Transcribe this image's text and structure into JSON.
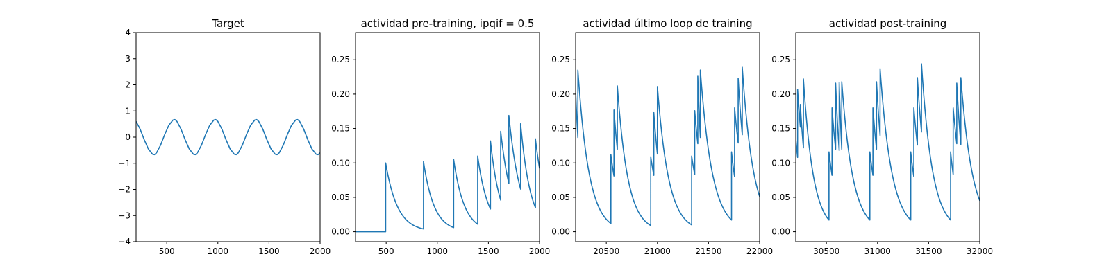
{
  "chart_data": [
    {
      "type": "line",
      "title": "Target",
      "xlim": [
        200,
        2000
      ],
      "ylim": [
        -4,
        4
      ],
      "xticks": [
        500,
        1000,
        1500,
        2000
      ],
      "yticks": [
        -4,
        -3,
        -2,
        -1,
        0,
        1,
        2,
        3,
        4
      ],
      "x_tick_labels": [
        "500",
        "1000",
        "1500",
        "2000"
      ],
      "y_tick_labels": [
        "−4",
        "−3",
        "−2",
        "−1",
        "0",
        "1",
        "2",
        "3",
        "4"
      ],
      "series": [
        {
          "color": "#1f77b4",
          "x": [
            200,
            240,
            280,
            320,
            360,
            380,
            400,
            440,
            480,
            520,
            560,
            580,
            600,
            640,
            680,
            720,
            760,
            780,
            800,
            840,
            880,
            920,
            960,
            980,
            1000,
            1040,
            1080,
            1120,
            1160,
            1180,
            1200,
            1240,
            1280,
            1320,
            1360,
            1380,
            1400,
            1440,
            1480,
            1520,
            1560,
            1580,
            1600,
            1640,
            1680,
            1720,
            1760,
            1780,
            1800,
            1840,
            1880,
            1920,
            1960,
            1980,
            2000
          ],
          "y": [
            0.6,
            0.3,
            -0.1,
            -0.45,
            -0.65,
            -0.67,
            -0.6,
            -0.3,
            0.1,
            0.45,
            0.65,
            0.67,
            0.6,
            0.3,
            -0.1,
            -0.45,
            -0.65,
            -0.67,
            -0.6,
            -0.3,
            0.1,
            0.45,
            0.65,
            0.67,
            0.6,
            0.3,
            -0.1,
            -0.45,
            -0.65,
            -0.67,
            -0.6,
            -0.3,
            0.1,
            0.45,
            0.65,
            0.67,
            0.6,
            0.3,
            -0.1,
            -0.45,
            -0.65,
            -0.67,
            -0.6,
            -0.3,
            0.1,
            0.45,
            0.65,
            0.67,
            0.6,
            0.3,
            -0.1,
            -0.45,
            -0.65,
            -0.67,
            -0.6
          ]
        }
      ]
    },
    {
      "type": "line",
      "title": "actividad pre-training, ipqif = 0.5",
      "xlim": [
        200,
        2000
      ],
      "ylim": [
        -0.0145,
        0.2895
      ],
      "xticks": [
        500,
        1000,
        1500,
        2000
      ],
      "yticks": [
        0.0,
        0.05,
        0.1,
        0.15,
        0.2,
        0.25
      ],
      "x_tick_labels": [
        "500",
        "1000",
        "1500",
        "2000"
      ],
      "y_tick_labels": [
        "0.00",
        "0.05",
        "0.10",
        "0.15",
        "0.20",
        "0.25"
      ],
      "series": [
        {
          "color": "#1f77b4",
          "decay": "exponential",
          "segments": [
            {
              "x_start": 200,
              "x_end": 495,
              "y_start": 0.0,
              "y_end": 0.0
            },
            {
              "x_start": 495,
              "x_end": 865,
              "y_start": 0.1,
              "y_end": 0.004
            },
            {
              "x_start": 865,
              "x_end": 1160,
              "y_start": 0.102,
              "y_end": 0.006
            },
            {
              "x_start": 1160,
              "x_end": 1395,
              "y_start": 0.105,
              "y_end": 0.011
            },
            {
              "x_start": 1395,
              "x_end": 1520,
              "y_start": 0.11,
              "y_end": 0.033
            },
            {
              "x_start": 1520,
              "x_end": 1620,
              "y_start": 0.132,
              "y_end": 0.046
            },
            {
              "x_start": 1620,
              "x_end": 1700,
              "y_start": 0.146,
              "y_end": 0.07
            },
            {
              "x_start": 1700,
              "x_end": 1815,
              "y_start": 0.169,
              "y_end": 0.062
            },
            {
              "x_start": 1815,
              "x_end": 1960,
              "y_start": 0.157,
              "y_end": 0.035
            },
            {
              "x_start": 1960,
              "x_end": 2000,
              "y_start": 0.135,
              "y_end": 0.092
            }
          ]
        }
      ]
    },
    {
      "type": "line",
      "title": "actividad último loop de training",
      "xlim": [
        20200,
        22000
      ],
      "ylim": [
        -0.0145,
        0.2895
      ],
      "xticks": [
        20500,
        21000,
        21500,
        22000
      ],
      "yticks": [
        0.0,
        0.05,
        0.1,
        0.15,
        0.2,
        0.25
      ],
      "x_tick_labels": [
        "20500",
        "21000",
        "21500",
        "22000"
      ],
      "y_tick_labels": [
        "0.00",
        "0.05",
        "0.10",
        "0.15",
        "0.20",
        "0.25"
      ],
      "series": [
        {
          "color": "#1f77b4",
          "decay": "exponential",
          "segments": [
            {
              "x_start": 20200,
              "x_end": 20222,
              "y_start": 0.205,
              "y_end": 0.137
            },
            {
              "x_start": 20222,
              "x_end": 20545,
              "y_start": 0.235,
              "y_end": 0.012
            },
            {
              "x_start": 20545,
              "x_end": 20575,
              "y_start": 0.112,
              "y_end": 0.081
            },
            {
              "x_start": 20575,
              "x_end": 20608,
              "y_start": 0.177,
              "y_end": 0.12
            },
            {
              "x_start": 20608,
              "x_end": 20935,
              "y_start": 0.212,
              "y_end": 0.009
            },
            {
              "x_start": 20935,
              "x_end": 20965,
              "y_start": 0.109,
              "y_end": 0.082
            },
            {
              "x_start": 20965,
              "x_end": 21000,
              "y_start": 0.173,
              "y_end": 0.113
            },
            {
              "x_start": 21000,
              "x_end": 21335,
              "y_start": 0.211,
              "y_end": 0.01
            },
            {
              "x_start": 21335,
              "x_end": 21365,
              "y_start": 0.11,
              "y_end": 0.083
            },
            {
              "x_start": 21365,
              "x_end": 21395,
              "y_start": 0.176,
              "y_end": 0.128
            },
            {
              "x_start": 21395,
              "x_end": 21420,
              "y_start": 0.226,
              "y_end": 0.137
            },
            {
              "x_start": 21420,
              "x_end": 21725,
              "y_start": 0.235,
              "y_end": 0.017
            },
            {
              "x_start": 21725,
              "x_end": 21755,
              "y_start": 0.116,
              "y_end": 0.08
            },
            {
              "x_start": 21755,
              "x_end": 21790,
              "y_start": 0.18,
              "y_end": 0.129
            },
            {
              "x_start": 21790,
              "x_end": 21830,
              "y_start": 0.223,
              "y_end": 0.141
            },
            {
              "x_start": 21830,
              "x_end": 22000,
              "y_start": 0.239,
              "y_end": 0.051
            }
          ]
        }
      ]
    },
    {
      "type": "line",
      "title": "actividad post-training",
      "xlim": [
        30200,
        32000
      ],
      "ylim": [
        -0.0145,
        0.2895
      ],
      "xticks": [
        30500,
        31000,
        31500,
        32000
      ],
      "yticks": [
        0.0,
        0.05,
        0.1,
        0.15,
        0.2,
        0.25
      ],
      "x_tick_labels": [
        "30500",
        "31000",
        "31500",
        "32000"
      ],
      "y_tick_labels": [
        "0.00",
        "0.05",
        "0.10",
        "0.15",
        "0.20",
        "0.25"
      ],
      "series": [
        {
          "color": "#1f77b4",
          "decay": "exponential",
          "segments": [
            {
              "x_start": 30200,
              "x_end": 30218,
              "y_start": 0.135,
              "y_end": 0.108
            },
            {
              "x_start": 30218,
              "x_end": 30245,
              "y_start": 0.207,
              "y_end": 0.152
            },
            {
              "x_start": 30245,
              "x_end": 30275,
              "y_start": 0.185,
              "y_end": 0.122
            },
            {
              "x_start": 30275,
              "x_end": 30525,
              "y_start": 0.222,
              "y_end": 0.017
            },
            {
              "x_start": 30525,
              "x_end": 30555,
              "y_start": 0.116,
              "y_end": 0.082
            },
            {
              "x_start": 30555,
              "x_end": 30590,
              "y_start": 0.18,
              "y_end": 0.12
            },
            {
              "x_start": 30590,
              "x_end": 30625,
              "y_start": 0.216,
              "y_end": 0.118
            },
            {
              "x_start": 30625,
              "x_end": 30650,
              "y_start": 0.217,
              "y_end": 0.12
            },
            {
              "x_start": 30650,
              "x_end": 30925,
              "y_start": 0.218,
              "y_end": 0.017
            },
            {
              "x_start": 30925,
              "x_end": 30955,
              "y_start": 0.116,
              "y_end": 0.082
            },
            {
              "x_start": 30955,
              "x_end": 30990,
              "y_start": 0.18,
              "y_end": 0.12
            },
            {
              "x_start": 30990,
              "x_end": 31025,
              "y_start": 0.218,
              "y_end": 0.14
            },
            {
              "x_start": 31025,
              "x_end": 31325,
              "y_start": 0.237,
              "y_end": 0.017
            },
            {
              "x_start": 31325,
              "x_end": 31355,
              "y_start": 0.116,
              "y_end": 0.08
            },
            {
              "x_start": 31355,
              "x_end": 31390,
              "y_start": 0.18,
              "y_end": 0.126
            },
            {
              "x_start": 31390,
              "x_end": 31430,
              "y_start": 0.224,
              "y_end": 0.145
            },
            {
              "x_start": 31430,
              "x_end": 31715,
              "y_start": 0.244,
              "y_end": 0.017
            },
            {
              "x_start": 31715,
              "x_end": 31740,
              "y_start": 0.116,
              "y_end": 0.083
            },
            {
              "x_start": 31740,
              "x_end": 31775,
              "y_start": 0.18,
              "y_end": 0.128
            },
            {
              "x_start": 31775,
              "x_end": 31815,
              "y_start": 0.216,
              "y_end": 0.127
            },
            {
              "x_start": 31815,
              "x_end": 32000,
              "y_start": 0.224,
              "y_end": 0.045
            }
          ]
        }
      ]
    }
  ]
}
